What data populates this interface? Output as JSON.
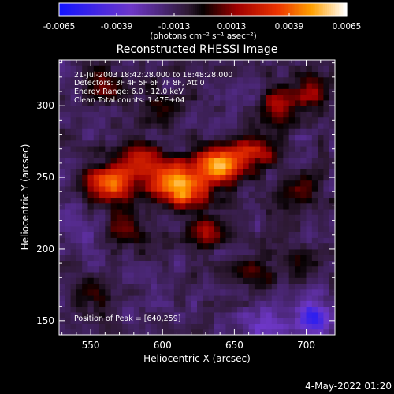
{
  "chart_data": {
    "type": "heatmap",
    "title": "Reconstructed RHESSI Image",
    "xlabel": "Heliocentric X (arcsec)",
    "ylabel": "Heliocentric Y (arcsec)",
    "xlim": [
      528,
      720
    ],
    "ylim": [
      140,
      332
    ],
    "x_ticks": [
      550,
      600,
      650,
      700
    ],
    "y_ticks": [
      150,
      200,
      250,
      300
    ],
    "colorbar": {
      "range": [
        -0.0065,
        0.0065
      ],
      "ticks": [
        "-0.0065",
        "-0.0039",
        "-0.0013",
        "0.0013",
        "0.0039",
        "0.0065"
      ],
      "label": "(photons cm⁻² s⁻¹ asec⁻²)"
    },
    "annotations": [
      "21-Jul-2003 18:42:28.000 to 18:48:28.000",
      "Detectors: 3F 4F 5F 6F 7F 8F, Att 0",
      "Energy Range: 6.0 - 12.0 keV",
      "Clean     Total counts: 1.47E+04"
    ],
    "peak_label": "Position of Peak = [640,259]",
    "peaks": [
      {
        "x": 640,
        "y": 259,
        "value": 0.0065,
        "sx": 11,
        "sy": 9
      },
      {
        "x": 562,
        "y": 245,
        "value": 0.0055,
        "sx": 10,
        "sy": 9
      },
      {
        "x": 605,
        "y": 248,
        "value": 0.005,
        "sx": 12,
        "sy": 10
      },
      {
        "x": 618,
        "y": 240,
        "value": 0.0042,
        "sx": 10,
        "sy": 9
      },
      {
        "x": 583,
        "y": 262,
        "value": 0.0042,
        "sx": 10,
        "sy": 8
      },
      {
        "x": 665,
        "y": 268,
        "value": 0.0036,
        "sx": 10,
        "sy": 8
      },
      {
        "x": 680,
        "y": 300,
        "value": 0.0034,
        "sx": 9,
        "sy": 9
      },
      {
        "x": 703,
        "y": 310,
        "value": 0.0026,
        "sx": 8,
        "sy": 8
      },
      {
        "x": 575,
        "y": 213,
        "value": 0.0025,
        "sx": 9,
        "sy": 8
      },
      {
        "x": 630,
        "y": 212,
        "value": 0.0024,
        "sx": 11,
        "sy": 8
      },
      {
        "x": 695,
        "y": 240,
        "value": 0.0022,
        "sx": 9,
        "sy": 8
      },
      {
        "x": 560,
        "y": 315,
        "value": 0.002,
        "sx": 9,
        "sy": 8
      },
      {
        "x": 598,
        "y": 300,
        "value": 0.0018,
        "sx": 10,
        "sy": 8
      },
      {
        "x": 665,
        "y": 185,
        "value": 0.002,
        "sx": 10,
        "sy": 8
      },
      {
        "x": 548,
        "y": 168,
        "value": 0.0017,
        "sx": 9,
        "sy": 8
      },
      {
        "x": 700,
        "y": 190,
        "value": 0.0015,
        "sx": 8,
        "sy": 8
      },
      {
        "x": 705,
        "y": 152,
        "value": -0.0045,
        "sx": 8,
        "sy": 8
      },
      {
        "x": 670,
        "y": 150,
        "value": -0.0018,
        "sx": 12,
        "sy": 8
      },
      {
        "x": 540,
        "y": 220,
        "value": -0.0016,
        "sx": 8,
        "sy": 10
      }
    ],
    "background": -0.0013,
    "noise_amplitude": 0.0008
  },
  "footer": {
    "timestamp": "4-May-2022 01:20"
  }
}
